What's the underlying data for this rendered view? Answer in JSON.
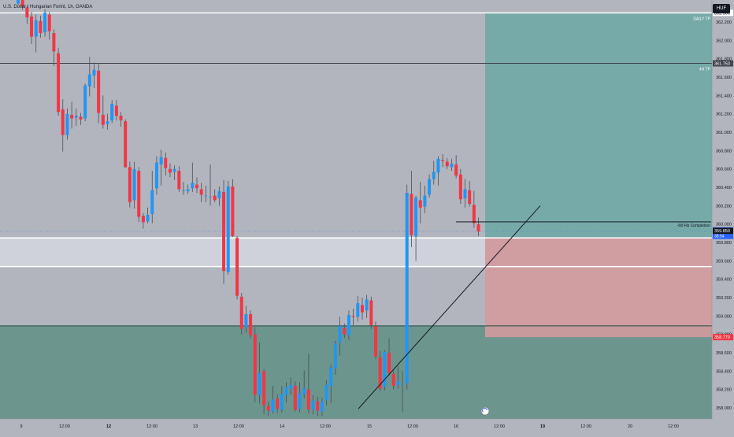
{
  "chart_data": {
    "type": "candlestick",
    "title": "U.S. Dollar / Hungarian Forint, 1h, OANDA",
    "currency": "HUF",
    "ylim": [
      357.88,
      362.44
    ],
    "x_ticks": [
      "9",
      "12:00",
      "12",
      "12:00",
      "13",
      "12:00",
      "14",
      "12:00",
      "15",
      "12:00",
      "16",
      "12:00",
      "19",
      "12:00",
      "20",
      "12:00"
    ],
    "bold_x_ticks": [
      "12",
      "19"
    ],
    "y_ticks": [
      "362.200",
      "362.000",
      "361.800",
      "361.600",
      "361.400",
      "361.200",
      "361.000",
      "360.800",
      "360.600",
      "360.400",
      "360.200",
      "360.000",
      "359.800",
      "359.600",
      "359.400",
      "359.200",
      "359.000",
      "358.800",
      "358.600",
      "358.400",
      "358.200",
      "358.000"
    ],
    "levels": [
      {
        "label": "DAILY TP",
        "value": 362.3,
        "price_tag": "362.300"
      },
      {
        "label": "4H TP",
        "value": 361.75,
        "price_tag": "361.750"
      },
      {
        "label": "",
        "value": 359.85,
        "price_tag": "359.850"
      },
      {
        "label": "",
        "value": 359.538,
        "price_tag": ""
      },
      {
        "label": "",
        "value": 358.892,
        "price_tag": ""
      }
    ],
    "current_price": {
      "value": "359.924",
      "timer": "38:54"
    },
    "stop_price": "358.770",
    "fib_note": "-68 Fib Completion",
    "fib_value": 360.024,
    "candles": [
      [
        362.4,
        362.55,
        362.39,
        362.48
      ],
      [
        362.47,
        362.5,
        362.33,
        362.37
      ],
      [
        362.36,
        362.38,
        362.18,
        362.25
      ],
      [
        362.26,
        362.31,
        361.96,
        362.04
      ],
      [
        362.04,
        362.28,
        361.87,
        362.22
      ],
      [
        362.21,
        362.27,
        362.03,
        362.08
      ],
      [
        362.09,
        362.34,
        362.04,
        362.3
      ],
      [
        362.28,
        362.31,
        362.01,
        362.1
      ],
      [
        362.08,
        362.12,
        361.72,
        361.88
      ],
      [
        361.86,
        361.92,
        361.18,
        361.22
      ],
      [
        361.25,
        361.36,
        360.79,
        360.97
      ],
      [
        360.97,
        361.26,
        360.92,
        361.2
      ],
      [
        361.19,
        361.33,
        361.04,
        361.15
      ],
      [
        361.16,
        361.26,
        361.07,
        361.18
      ],
      [
        361.17,
        361.21,
        361.08,
        361.14
      ],
      [
        361.15,
        361.53,
        361.12,
        361.51
      ],
      [
        361.5,
        361.82,
        361.39,
        361.63
      ],
      [
        361.62,
        361.76,
        361.48,
        361.68
      ],
      [
        361.67,
        361.75,
        361.1,
        361.21
      ],
      [
        361.19,
        361.4,
        361.04,
        361.08
      ],
      [
        361.09,
        361.2,
        361.03,
        361.12
      ],
      [
        361.13,
        361.35,
        361.1,
        361.31
      ],
      [
        361.29,
        361.35,
        361.13,
        361.18
      ],
      [
        361.18,
        361.22,
        361.06,
        361.13
      ],
      [
        361.12,
        361.14,
        360.61,
        360.62
      ],
      [
        360.62,
        360.68,
        360.18,
        360.24
      ],
      [
        360.26,
        360.68,
        360.17,
        360.6
      ],
      [
        360.58,
        360.62,
        360.02,
        360.08
      ],
      [
        360.09,
        360.12,
        359.95,
        360.02
      ],
      [
        360.03,
        360.18,
        360.01,
        360.1
      ],
      [
        360.11,
        360.58,
        360.01,
        360.37
      ],
      [
        360.39,
        360.74,
        360.32,
        360.67
      ],
      [
        360.65,
        360.81,
        360.42,
        360.73
      ],
      [
        360.72,
        360.78,
        360.53,
        360.61
      ],
      [
        360.6,
        360.66,
        360.51,
        360.56
      ],
      [
        360.57,
        360.64,
        360.48,
        360.6
      ],
      [
        360.58,
        360.63,
        360.35,
        360.38
      ],
      [
        360.37,
        360.46,
        360.32,
        360.37
      ],
      [
        360.36,
        360.43,
        360.33,
        360.38
      ],
      [
        360.39,
        360.67,
        360.35,
        360.45
      ],
      [
        360.43,
        360.51,
        360.34,
        360.39
      ],
      [
        360.38,
        360.45,
        360.24,
        360.32
      ],
      [
        360.31,
        360.42,
        360.24,
        360.31
      ],
      [
        360.3,
        360.65,
        360.2,
        360.3
      ],
      [
        360.31,
        360.38,
        360.24,
        360.26
      ],
      [
        360.28,
        360.41,
        360.2,
        360.36
      ],
      [
        360.35,
        360.48,
        359.35,
        359.49
      ],
      [
        359.48,
        360.47,
        359.45,
        360.41
      ],
      [
        360.41,
        360.49,
        359.86,
        359.87
      ],
      [
        359.85,
        359.87,
        359.18,
        359.22
      ],
      [
        359.21,
        359.25,
        358.8,
        358.86
      ],
      [
        358.88,
        359.11,
        358.82,
        359.02
      ],
      [
        359.02,
        359.06,
        358.76,
        358.79
      ],
      [
        358.8,
        358.88,
        358.06,
        358.14
      ],
      [
        358.14,
        358.71,
        358.05,
        358.38
      ],
      [
        358.4,
        358.42,
        357.93,
        358.03
      ],
      [
        358.02,
        358.07,
        357.91,
        357.97
      ],
      [
        357.96,
        358.24,
        357.94,
        358.09
      ],
      [
        358.1,
        358.15,
        357.94,
        357.99
      ],
      [
        357.98,
        358.24,
        357.95,
        358.15
      ],
      [
        358.14,
        358.28,
        358.06,
        358.22
      ],
      [
        358.21,
        358.33,
        358.14,
        358.25
      ],
      [
        358.24,
        358.29,
        357.96,
        357.98
      ],
      [
        357.99,
        358.28,
        357.95,
        358.16
      ],
      [
        358.15,
        358.41,
        358.1,
        358.21
      ],
      [
        358.2,
        358.59,
        357.94,
        357.98
      ],
      [
        357.98,
        358.14,
        357.93,
        358.08
      ],
      [
        358.07,
        358.12,
        357.91,
        357.97
      ],
      [
        357.96,
        358.11,
        357.91,
        358.07
      ],
      [
        358.08,
        358.3,
        358.03,
        358.25
      ],
      [
        358.24,
        358.47,
        358.05,
        358.44
      ],
      [
        358.43,
        358.73,
        358.36,
        358.7
      ],
      [
        358.71,
        358.99,
        358.57,
        358.89
      ],
      [
        358.87,
        358.92,
        358.76,
        358.8
      ],
      [
        358.79,
        359.06,
        358.74,
        359.01
      ],
      [
        359.0,
        359.08,
        358.9,
        358.99
      ],
      [
        358.99,
        359.22,
        358.94,
        359.14
      ],
      [
        359.12,
        359.2,
        358.96,
        359.04
      ],
      [
        359.06,
        359.23,
        358.98,
        359.18
      ],
      [
        359.17,
        359.21,
        358.86,
        358.9
      ],
      [
        358.89,
        358.94,
        358.53,
        358.56
      ],
      [
        358.55,
        358.62,
        358.18,
        358.21
      ],
      [
        358.23,
        358.63,
        358.19,
        358.61
      ],
      [
        358.6,
        358.76,
        358.35,
        358.38
      ],
      [
        358.37,
        358.4,
        358.2,
        358.24
      ],
      [
        358.25,
        358.45,
        358.21,
        358.29
      ],
      [
        358.26,
        358.4,
        357.95,
        358.26
      ],
      [
        358.27,
        360.43,
        358.2,
        360.34
      ],
      [
        360.33,
        360.58,
        359.75,
        359.88
      ],
      [
        359.87,
        360.31,
        359.6,
        360.29
      ],
      [
        360.26,
        360.46,
        360.01,
        360.18
      ],
      [
        360.19,
        360.42,
        360.12,
        360.31
      ],
      [
        360.32,
        360.54,
        360.29,
        360.49
      ],
      [
        360.49,
        360.69,
        360.43,
        360.57
      ],
      [
        360.56,
        360.74,
        360.42,
        360.71
      ],
      [
        360.7,
        360.76,
        360.62,
        360.69
      ],
      [
        360.68,
        360.72,
        360.6,
        360.63
      ],
      [
        360.62,
        360.71,
        360.58,
        360.66
      ],
      [
        360.65,
        360.75,
        360.5,
        360.53
      ],
      [
        360.54,
        360.6,
        360.22,
        360.27
      ],
      [
        360.28,
        360.49,
        360.18,
        360.38
      ],
      [
        360.37,
        360.47,
        360.19,
        360.22
      ],
      [
        360.21,
        360.36,
        359.96,
        360.01
      ],
      [
        360.0,
        360.07,
        359.87,
        359.92
      ]
    ]
  }
}
